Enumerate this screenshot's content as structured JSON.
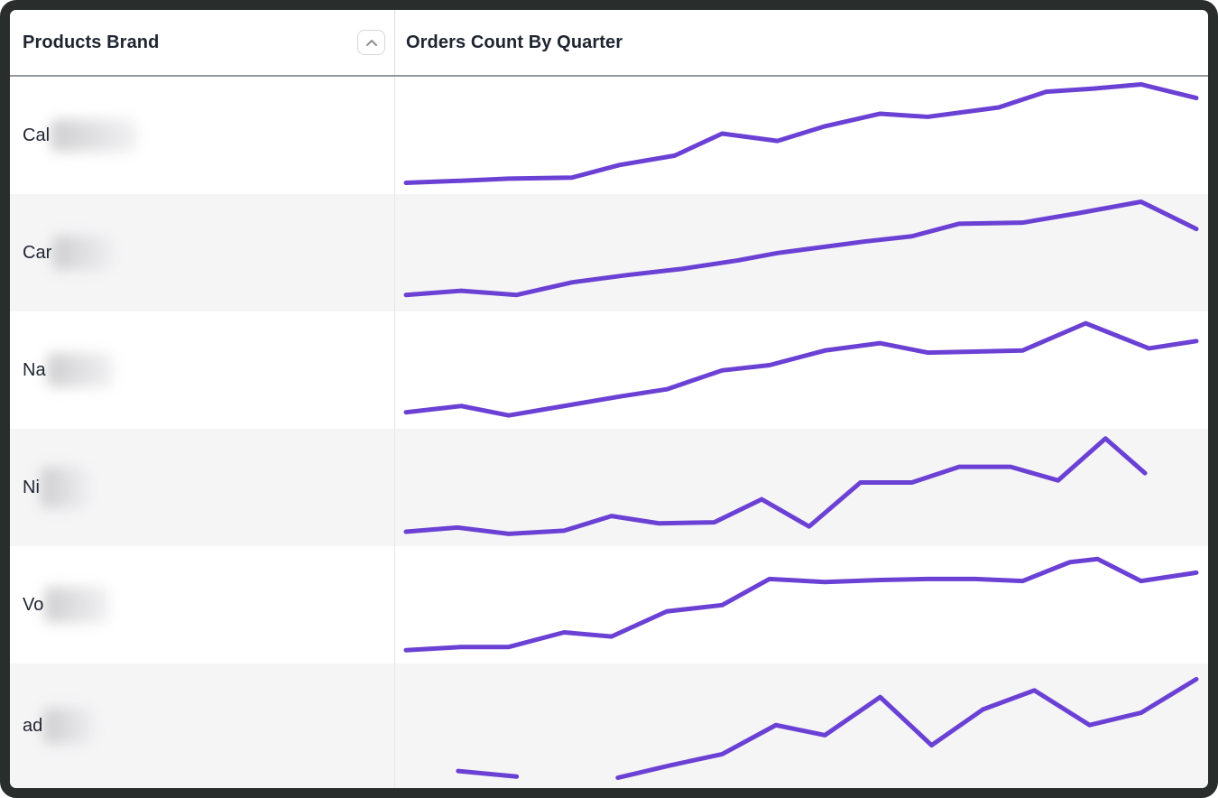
{
  "header": {
    "brand_column_label": "Products Brand",
    "chart_column_label": "Orders Count By Quarter",
    "sort_icon": "chevron-up-icon"
  },
  "colors": {
    "line": "#6b40d4",
    "row_alt_background": "#f5f5f6",
    "row_background": "#ffffff",
    "frame_border": "#292d2c",
    "header_underline": "#95999d",
    "column_divider": "#e6e6e8",
    "text": "#1f2530",
    "sort_chevron": "#8a8f94",
    "sort_button_border": "#d6d6d8"
  },
  "chart_data": {
    "type": "line",
    "title": "Orders Count By Quarter",
    "xlabel": "time (quarters, no tick labels shown)",
    "ylabel": "orders count (sparkline, no axis shown; values normalized 0-100 of row height)",
    "grid": false,
    "legend": false,
    "series": [
      {
        "label_prefix": "Cal",
        "label_redacted": true,
        "blur_w": 96,
        "blur_h": 36,
        "segments": [
          [
            [
              0,
              3
            ],
            [
              0.07,
              5
            ],
            [
              0.13,
              7
            ],
            [
              0.21,
              8
            ],
            [
              0.27,
              20
            ],
            [
              0.34,
              29
            ],
            [
              0.4,
              50
            ],
            [
              0.47,
              43
            ],
            [
              0.53,
              57
            ],
            [
              0.6,
              69
            ],
            [
              0.66,
              66
            ],
            [
              0.75,
              75
            ],
            [
              0.81,
              90
            ],
            [
              0.87,
              93
            ],
            [
              0.93,
              97
            ],
            [
              1,
              84
            ]
          ]
        ]
      },
      {
        "label_prefix": "Car",
        "label_redacted": true,
        "blur_w": 68,
        "blur_h": 38,
        "segments": [
          [
            [
              0,
              8
            ],
            [
              0.07,
              12
            ],
            [
              0.14,
              8
            ],
            [
              0.21,
              20
            ],
            [
              0.28,
              27
            ],
            [
              0.35,
              33
            ],
            [
              0.42,
              41
            ],
            [
              0.47,
              48
            ],
            [
              0.53,
              54
            ],
            [
              0.58,
              59
            ],
            [
              0.64,
              64
            ],
            [
              0.7,
              76
            ],
            [
              0.78,
              77
            ],
            [
              0.85,
              86
            ],
            [
              0.93,
              97
            ],
            [
              1,
              71
            ]
          ]
        ]
      },
      {
        "label_prefix": "Na",
        "label_redacted": true,
        "blur_w": 74,
        "blur_h": 38,
        "segments": [
          [
            [
              0,
              8
            ],
            [
              0.07,
              14
            ],
            [
              0.13,
              5
            ],
            [
              0.2,
              14
            ],
            [
              0.27,
              23
            ],
            [
              0.33,
              30
            ],
            [
              0.4,
              48
            ],
            [
              0.46,
              53
            ],
            [
              0.53,
              67
            ],
            [
              0.6,
              74
            ],
            [
              0.66,
              65
            ],
            [
              0.72,
              66
            ],
            [
              0.78,
              67
            ],
            [
              0.86,
              93
            ],
            [
              0.94,
              69
            ],
            [
              1,
              76
            ]
          ]
        ]
      },
      {
        "label_prefix": "Ni",
        "label_redacted": true,
        "blur_w": 54,
        "blur_h": 46,
        "segments": [
          [
            [
              0,
              6
            ],
            [
              0.065,
              10
            ],
            [
              0.13,
              4
            ],
            [
              0.2,
              7
            ],
            [
              0.26,
              21
            ],
            [
              0.32,
              14
            ],
            [
              0.39,
              15
            ],
            [
              0.45,
              37
            ],
            [
              0.51,
              11
            ],
            [
              0.575,
              53
            ],
            [
              0.64,
              53
            ],
            [
              0.7,
              68
            ],
            [
              0.765,
              68
            ],
            [
              0.825,
              55
            ],
            [
              0.885,
              95
            ],
            [
              0.935,
              62
            ]
          ]
        ]
      },
      {
        "label_prefix": "Vo",
        "label_redacted": true,
        "blur_w": 72,
        "blur_h": 40,
        "segments": [
          [
            [
              0,
              5
            ],
            [
              0.07,
              8
            ],
            [
              0.13,
              8
            ],
            [
              0.2,
              22
            ],
            [
              0.26,
              18
            ],
            [
              0.33,
              42
            ],
            [
              0.4,
              48
            ],
            [
              0.46,
              73
            ],
            [
              0.53,
              70
            ],
            [
              0.6,
              72
            ],
            [
              0.66,
              73
            ],
            [
              0.72,
              73
            ],
            [
              0.78,
              71
            ],
            [
              0.84,
              89
            ],
            [
              0.875,
              92
            ],
            [
              0.93,
              71
            ],
            [
              1,
              79
            ]
          ]
        ]
      },
      {
        "label_prefix": "ad",
        "label_redacted": true,
        "blur_w": 58,
        "blur_h": 40,
        "segments": [
          [
            [
              0.066,
              8
            ],
            [
              0.14,
              3
            ]
          ],
          [
            [
              0.268,
              2
            ],
            [
              0.334,
              13
            ],
            [
              0.4,
              23
            ],
            [
              0.468,
              49
            ],
            [
              0.53,
              40
            ],
            [
              0.6,
              74
            ],
            [
              0.665,
              31
            ],
            [
              0.73,
              63
            ],
            [
              0.795,
              80
            ],
            [
              0.865,
              49
            ],
            [
              0.93,
              60
            ],
            [
              1,
              90
            ]
          ]
        ]
      }
    ]
  }
}
